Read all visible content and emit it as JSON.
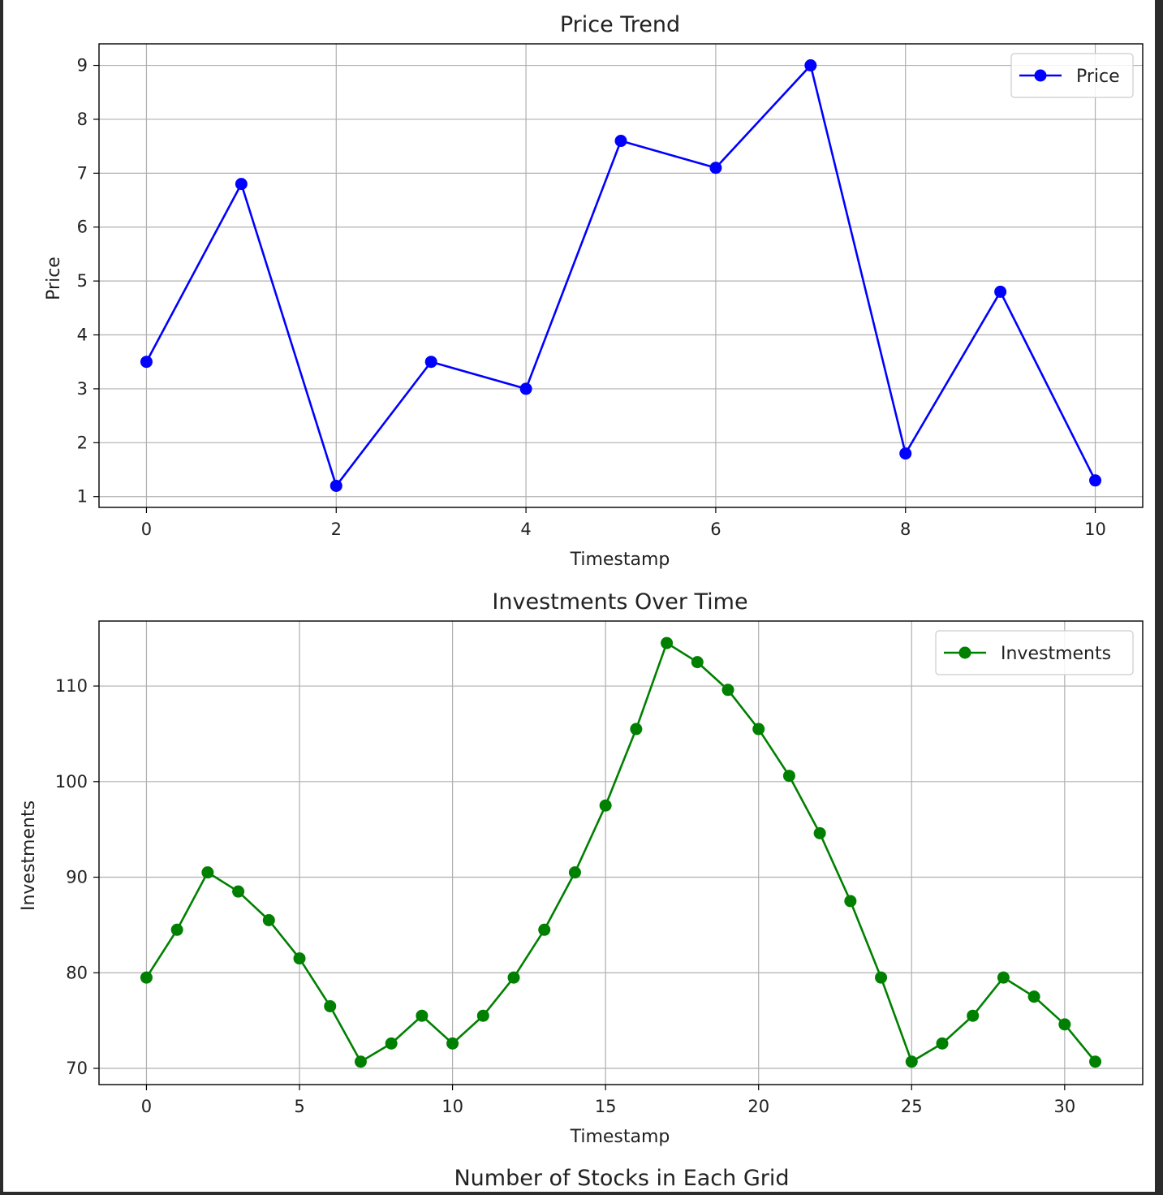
{
  "chart_data": [
    {
      "type": "line",
      "title": "Price Trend",
      "xlabel": "Timestamp",
      "ylabel": "Price",
      "xlim": [
        -0.5,
        10.5
      ],
      "ylim": [
        0.8,
        9.4
      ],
      "xticks": [
        0,
        2,
        4,
        6,
        8,
        10
      ],
      "yticks": [
        1,
        2,
        3,
        4,
        5,
        6,
        7,
        8,
        9
      ],
      "grid": true,
      "legend_position": "top-right",
      "series": [
        {
          "name": "Price",
          "color": "#0000ff",
          "marker": "circle",
          "x": [
            0,
            1,
            2,
            3,
            4,
            5,
            6,
            7,
            8,
            9,
            10
          ],
          "values": [
            3.5,
            6.8,
            1.2,
            3.5,
            3.0,
            7.6,
            7.1,
            9.0,
            1.8,
            4.8,
            1.3
          ]
        }
      ]
    },
    {
      "type": "line",
      "title": "Investments Over Time",
      "xlabel": "Timestamp",
      "ylabel": "Investments",
      "xlim": [
        -1.55,
        32.55
      ],
      "ylim": [
        68.3,
        116.8
      ],
      "xticks": [
        0,
        5,
        10,
        15,
        20,
        25,
        30
      ],
      "yticks": [
        70,
        80,
        90,
        100,
        110
      ],
      "grid": true,
      "legend_position": "top-right",
      "series": [
        {
          "name": "Investments",
          "color": "#008000",
          "marker": "circle",
          "x": [
            0,
            1,
            2,
            3,
            4,
            5,
            6,
            7,
            8,
            9,
            10,
            11,
            12,
            13,
            14,
            15,
            16,
            17,
            18,
            19,
            20,
            21,
            22,
            23,
            24,
            25,
            26,
            27,
            28,
            29,
            30,
            31
          ],
          "values": [
            79.5,
            84.5,
            90.5,
            88.5,
            85.5,
            81.5,
            76.5,
            70.7,
            72.6,
            75.5,
            72.6,
            75.5,
            79.5,
            84.5,
            90.5,
            97.5,
            105.5,
            114.5,
            112.5,
            109.6,
            105.5,
            100.6,
            94.6,
            87.5,
            79.5,
            70.7,
            72.6,
            75.5,
            79.5,
            77.5,
            74.6,
            70.7
          ]
        }
      ]
    }
  ],
  "figure_caption": "Number of Stocks in Each Grid"
}
